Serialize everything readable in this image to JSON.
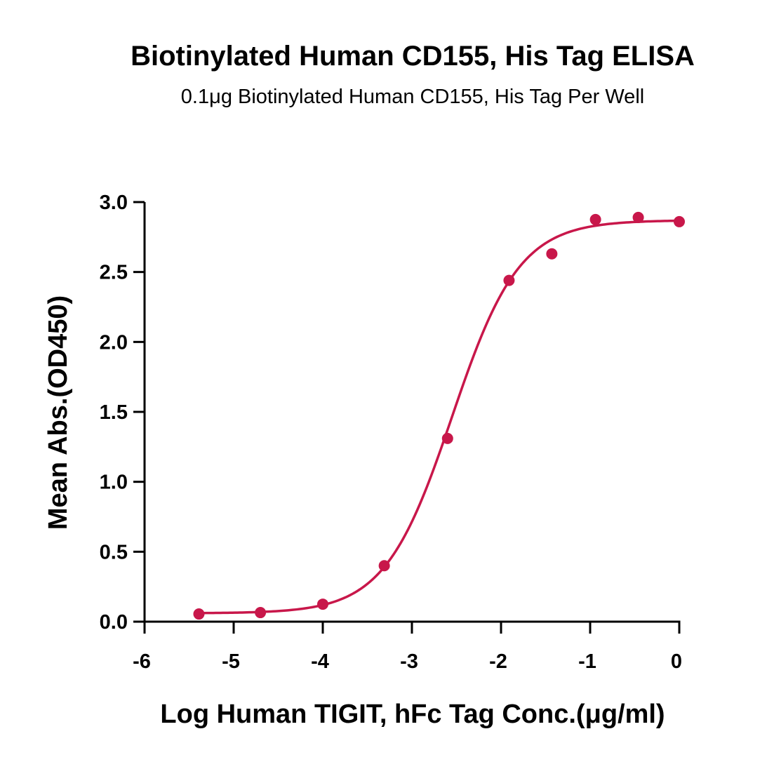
{
  "chart_data": {
    "type": "scatter",
    "title": "Biotinylated Human CD155, His Tag ELISA",
    "subtitle": "0.1μg Biotinylated Human CD155, His Tag Per Well",
    "xlabel": "Log Human TIGIT, hFc Tag Conc.(μg/ml)",
    "ylabel": "Mean Abs.(OD450)",
    "xlim": [
      -6,
      0
    ],
    "ylim": [
      0,
      3.0
    ],
    "xticks": [
      "-6",
      "-5",
      "-4",
      "-3",
      "-2",
      "-1",
      "0"
    ],
    "xtick_values": [
      -6,
      -5,
      -4,
      -3,
      -2,
      -1,
      0
    ],
    "yticks": [
      "0.0",
      "0.5",
      "1.0",
      "1.5",
      "2.0",
      "2.5",
      "3.0"
    ],
    "ytick_values": [
      0,
      0.5,
      1.0,
      1.5,
      2.0,
      2.5,
      3.0
    ],
    "grid": false,
    "series": [
      {
        "name": "Biotinylated Human CD155, His Tag",
        "color": "#c8174a",
        "x": [
          -5.39,
          -4.7,
          -4.0,
          -3.31,
          -2.6,
          -1.91,
          -1.43,
          -0.94,
          -0.46,
          0.0
        ],
        "y": [
          0.055,
          0.065,
          0.125,
          0.4,
          1.31,
          2.44,
          2.63,
          2.875,
          2.89,
          2.86
        ],
        "fit": {
          "model": "4PL",
          "bottom": 0.06,
          "top": 2.87,
          "log_ec50": -2.55,
          "hill": 1.15,
          "x_range": [
            -5.39,
            0.0
          ]
        }
      }
    ]
  }
}
